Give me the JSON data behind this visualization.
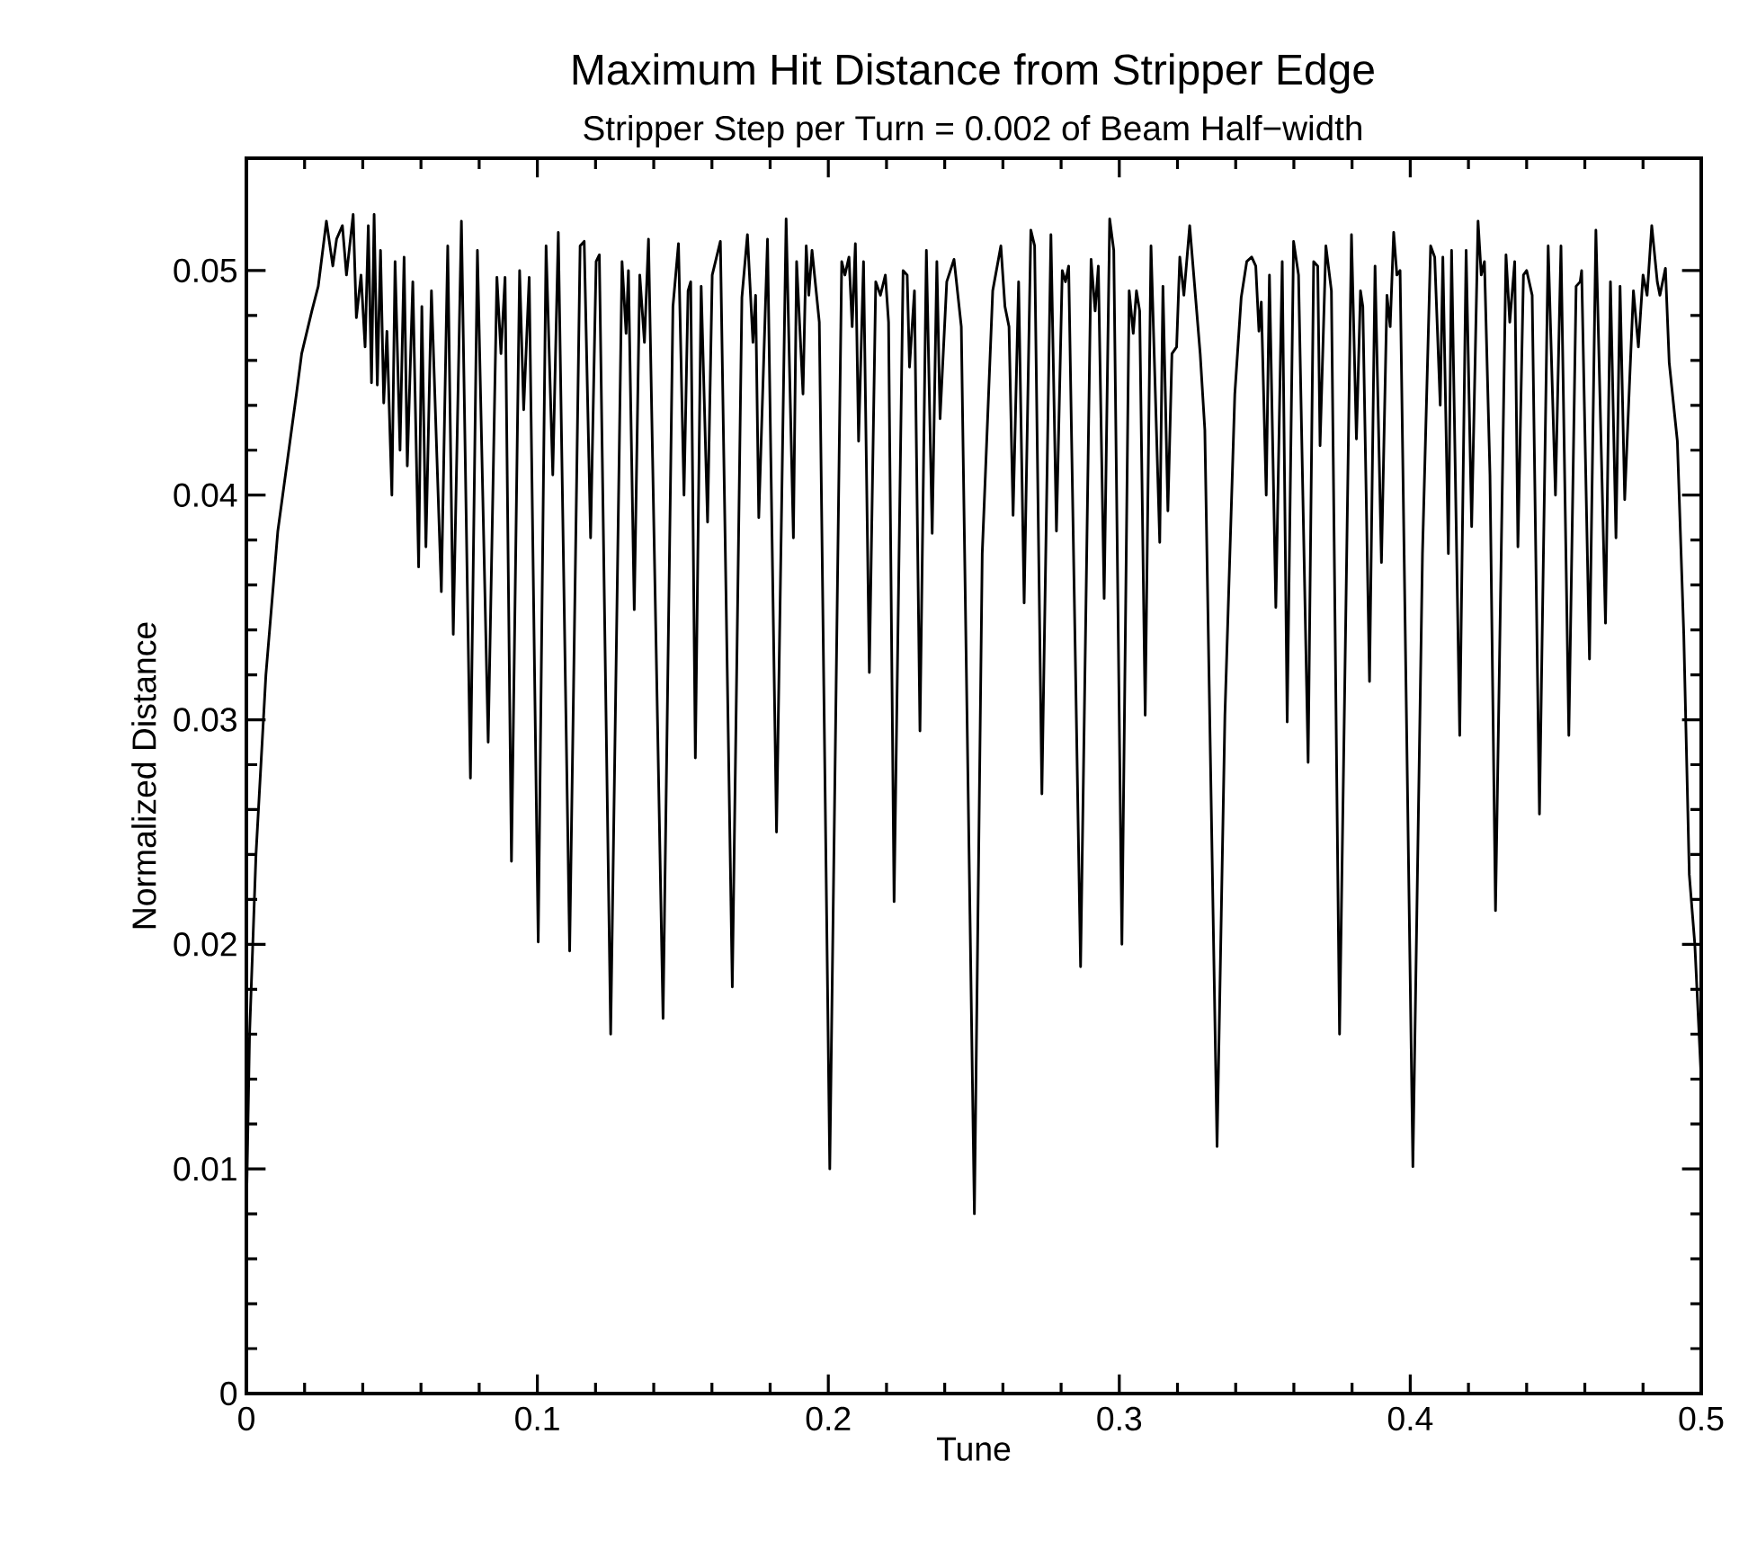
{
  "chart_data": {
    "type": "line",
    "title": "Maximum Hit Distance from Stripper Edge",
    "subtitle": "Stripper Step per Turn = 0.002 of Beam Half−width",
    "xlabel": "Tune",
    "ylabel": "Normalized Distance",
    "color": "#000000",
    "x": [
      0,
      0.0011,
      0.0033,
      0.0067,
      0.0108,
      0.015,
      0.0172,
      0.019,
      0.0225,
      0.0247,
      0.0275,
      0.0297,
      0.031,
      0.033,
      0.0344,
      0.0367,
      0.0378,
      0.0394,
      0.0408,
      0.0419,
      0.043,
      0.0439,
      0.045,
      0.0461,
      0.0472,
      0.0483,
      0.05,
      0.0511,
      0.0528,
      0.0542,
      0.0553,
      0.0572,
      0.0592,
      0.0603,
      0.0617,
      0.0636,
      0.067,
      0.0692,
      0.0711,
      0.0739,
      0.077,
      0.0794,
      0.0831,
      0.0861,
      0.0875,
      0.0889,
      0.0911,
      0.0939,
      0.0953,
      0.0972,
      0.1003,
      0.103,
      0.1053,
      0.1072,
      0.1111,
      0.1147,
      0.1161,
      0.1183,
      0.1202,
      0.1213,
      0.1252,
      0.1291,
      0.1305,
      0.1313,
      0.1333,
      0.1352,
      0.1368,
      0.1382,
      0.1432,
      0.1466,
      0.1485,
      0.1504,
      0.1518,
      0.1527,
      0.1543,
      0.1563,
      0.1585,
      0.1601,
      0.1629,
      0.167,
      0.1703,
      0.1722,
      0.1741,
      0.175,
      0.1761,
      0.1791,
      0.1822,
      0.1855,
      0.188,
      0.1891,
      0.1913,
      0.1924,
      0.1933,
      0.1944,
      0.1969,
      0.2005,
      0.2046,
      0.2057,
      0.2071,
      0.2082,
      0.2093,
      0.2104,
      0.2121,
      0.2141,
      0.2163,
      0.2179,
      0.2196,
      0.2207,
      0.2226,
      0.2257,
      0.2271,
      0.2279,
      0.2296,
      0.2315,
      0.2337,
      0.2357,
      0.2373,
      0.2384,
      0.2407,
      0.2432,
      0.2457,
      0.2502,
      0.2529,
      0.2565,
      0.2593,
      0.2607,
      0.2621,
      0.2635,
      0.2654,
      0.2673,
      0.2696,
      0.2709,
      0.2734,
      0.2765,
      0.2784,
      0.2804,
      0.2815,
      0.2826,
      0.2867,
      0.2903,
      0.2917,
      0.2928,
      0.2948,
      0.2967,
      0.2981,
      0.3009,
      0.3034,
      0.3048,
      0.3059,
      0.307,
      0.3089,
      0.3109,
      0.3139,
      0.315,
      0.3167,
      0.3181,
      0.3197,
      0.3208,
      0.3222,
      0.3242,
      0.3278,
      0.3294,
      0.3336,
      0.3363,
      0.3397,
      0.3419,
      0.3438,
      0.3455,
      0.3469,
      0.348,
      0.3488,
      0.3505,
      0.3516,
      0.3538,
      0.356,
      0.3577,
      0.3599,
      0.3616,
      0.3649,
      0.3668,
      0.3682,
      0.369,
      0.371,
      0.3729,
      0.3757,
      0.3798,
      0.3815,
      0.3829,
      0.3837,
      0.386,
      0.3879,
      0.3901,
      0.392,
      0.3931,
      0.3943,
      0.3954,
      0.3965,
      0.4009,
      0.4042,
      0.407,
      0.4084,
      0.4103,
      0.4112,
      0.4131,
      0.4142,
      0.417,
      0.4192,
      0.4211,
      0.4233,
      0.4244,
      0.4255,
      0.4274,
      0.4293,
      0.4329,
      0.4342,
      0.4359,
      0.437,
      0.4389,
      0.44,
      0.4419,
      0.4444,
      0.4474,
      0.4499,
      0.4518,
      0.4545,
      0.457,
      0.4584,
      0.4589,
      0.4616,
      0.4638,
      0.4671,
      0.4688,
      0.4707,
      0.4721,
      0.4737,
      0.4753,
      0.4767,
      0.4784,
      0.48,
      0.4814,
      0.483,
      0.4849,
      0.4858,
      0.4877,
      0.489,
      0.4918,
      0.494,
      0.4959,
      0.4978,
      0.5
    ],
    "values": [
      0.0081,
      0.016,
      0.024,
      0.032,
      0.0384,
      0.0424,
      0.0445,
      0.0463,
      0.0482,
      0.0493,
      0.0522,
      0.0502,
      0.0514,
      0.052,
      0.0498,
      0.0525,
      0.0479,
      0.0498,
      0.0466,
      0.052,
      0.045,
      0.0525,
      0.0449,
      0.0509,
      0.0441,
      0.0473,
      0.04,
      0.0504,
      0.042,
      0.0506,
      0.0413,
      0.0495,
      0.0368,
      0.0484,
      0.0377,
      0.0491,
      0.0357,
      0.0511,
      0.0338,
      0.0522,
      0.0274,
      0.0509,
      0.029,
      0.0497,
      0.0463,
      0.0497,
      0.0237,
      0.05,
      0.0438,
      0.0497,
      0.0201,
      0.0511,
      0.0409,
      0.0517,
      0.0197,
      0.0511,
      0.0513,
      0.0381,
      0.0504,
      0.0507,
      0.016,
      0.0504,
      0.0472,
      0.05,
      0.0349,
      0.0498,
      0.0468,
      0.0514,
      0.0167,
      0.0484,
      0.0512,
      0.04,
      0.0491,
      0.0495,
      0.0283,
      0.0493,
      0.0388,
      0.0498,
      0.0513,
      0.0181,
      0.0488,
      0.0516,
      0.0468,
      0.0489,
      0.039,
      0.0514,
      0.025,
      0.0523,
      0.0381,
      0.0504,
      0.0445,
      0.0511,
      0.0489,
      0.0509,
      0.0477,
      0.01,
      0.0504,
      0.0498,
      0.0506,
      0.0475,
      0.0512,
      0.0424,
      0.0504,
      0.0321,
      0.0495,
      0.0489,
      0.0498,
      0.0477,
      0.0219,
      0.05,
      0.0498,
      0.0457,
      0.0491,
      0.0295,
      0.0509,
      0.0383,
      0.0504,
      0.0434,
      0.0495,
      0.0505,
      0.0475,
      0.008,
      0.0374,
      0.0491,
      0.0511,
      0.0484,
      0.0475,
      0.0391,
      0.0495,
      0.0352,
      0.0518,
      0.0511,
      0.0267,
      0.0516,
      0.0384,
      0.05,
      0.0495,
      0.0502,
      0.019,
      0.0505,
      0.0482,
      0.0502,
      0.0354,
      0.0523,
      0.0509,
      0.02,
      0.0491,
      0.0472,
      0.0491,
      0.0482,
      0.0302,
      0.0511,
      0.0379,
      0.0493,
      0.0393,
      0.0463,
      0.0466,
      0.0506,
      0.0489,
      0.052,
      0.0463,
      0.0429,
      0.011,
      0.0302,
      0.0445,
      0.0488,
      0.0504,
      0.0506,
      0.0502,
      0.0473,
      0.0486,
      0.04,
      0.0498,
      0.035,
      0.0504,
      0.0299,
      0.0513,
      0.0498,
      0.0281,
      0.0504,
      0.0502,
      0.0422,
      0.0511,
      0.0491,
      0.016,
      0.0516,
      0.0425,
      0.0491,
      0.0484,
      0.0317,
      0.0502,
      0.037,
      0.0489,
      0.0475,
      0.0517,
      0.0498,
      0.05,
      0.0101,
      0.0374,
      0.0511,
      0.0506,
      0.044,
      0.0506,
      0.0374,
      0.0509,
      0.0293,
      0.0509,
      0.0386,
      0.0522,
      0.0498,
      0.0504,
      0.0409,
      0.0215,
      0.0507,
      0.0477,
      0.0504,
      0.0377,
      0.0498,
      0.05,
      0.0489,
      0.0258,
      0.0511,
      0.04,
      0.0511,
      0.0293,
      0.0493,
      0.0495,
      0.05,
      0.0327,
      0.0518,
      0.0343,
      0.0495,
      0.0381,
      0.0493,
      0.0398,
      0.0448,
      0.0491,
      0.0466,
      0.0498,
      0.0489,
      0.052,
      0.0495,
      0.0489,
      0.0501,
      0.0459,
      0.0424,
      0.0338,
      0.0231,
      0.02,
      0.014
    ],
    "xlim": [
      0,
      0.5
    ],
    "ylim": [
      0,
      0.055
    ],
    "xticks": [
      0,
      0.1,
      0.2,
      0.3,
      0.4,
      0.5
    ],
    "yticks": [
      0,
      0.01,
      0.02,
      0.03,
      0.04,
      0.05
    ]
  }
}
